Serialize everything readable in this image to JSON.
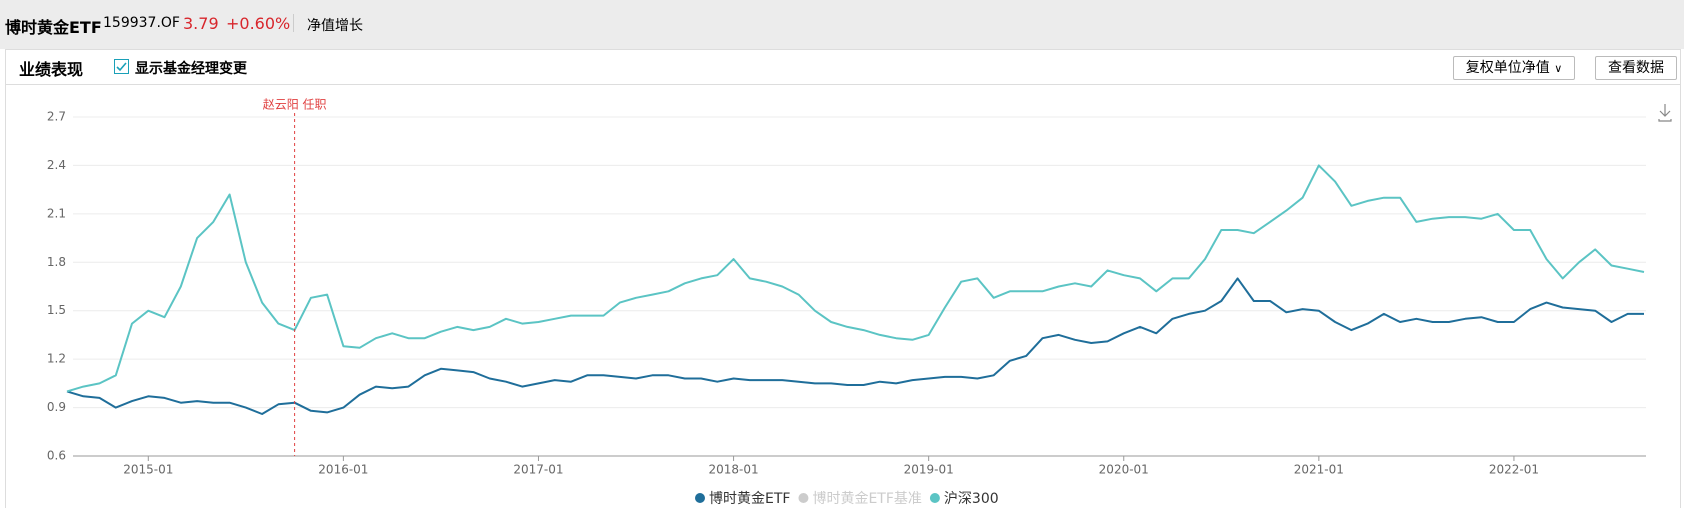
{
  "header": {
    "fund_name": "博时黄金ETF",
    "code": "159937.OF",
    "price": "3.79",
    "change": "+0.60%",
    "tab": "净值增长"
  },
  "panel": {
    "title": "业绩表现",
    "checkbox_label": "显示基金经理变更",
    "dropdown": "复权单位净值",
    "button": "查看数据"
  },
  "chart_data": {
    "type": "line",
    "x": [
      "2014-08",
      "2014-09",
      "2014-10",
      "2014-11",
      "2014-12",
      "2015-01",
      "2015-02",
      "2015-03",
      "2015-04",
      "2015-05",
      "2015-06",
      "2015-07",
      "2015-08",
      "2015-09",
      "2015-10",
      "2015-11",
      "2015-12",
      "2016-01",
      "2016-02",
      "2016-03",
      "2016-04",
      "2016-05",
      "2016-06",
      "2016-07",
      "2016-08",
      "2016-09",
      "2016-10",
      "2016-11",
      "2016-12",
      "2017-01",
      "2017-02",
      "2017-03",
      "2017-04",
      "2017-05",
      "2017-06",
      "2017-07",
      "2017-08",
      "2017-09",
      "2017-10",
      "2017-11",
      "2017-12",
      "2018-01",
      "2018-02",
      "2018-03",
      "2018-04",
      "2018-05",
      "2018-06",
      "2018-07",
      "2018-08",
      "2018-09",
      "2018-10",
      "2018-11",
      "2018-12",
      "2019-01",
      "2019-02",
      "2019-03",
      "2019-04",
      "2019-05",
      "2019-06",
      "2019-07",
      "2019-08",
      "2019-09",
      "2019-10",
      "2019-11",
      "2019-12",
      "2020-01",
      "2020-02",
      "2020-03",
      "2020-04",
      "2020-05",
      "2020-06",
      "2020-07",
      "2020-08",
      "2020-09",
      "2020-10",
      "2020-11",
      "2020-12",
      "2021-01",
      "2021-02",
      "2021-03",
      "2021-04",
      "2021-05",
      "2021-06",
      "2021-07",
      "2021-08",
      "2021-09",
      "2021-10",
      "2021-11",
      "2021-12",
      "2022-01",
      "2022-02",
      "2022-03",
      "2022-04",
      "2022-05",
      "2022-06",
      "2022-07",
      "2022-08",
      "2022-09"
    ],
    "series": [
      {
        "name": "博时黄金ETF",
        "color": "#1f6e9a",
        "values": [
          1.0,
          0.97,
          0.96,
          0.9,
          0.94,
          0.97,
          0.96,
          0.93,
          0.94,
          0.93,
          0.93,
          0.9,
          0.86,
          0.92,
          0.93,
          0.88,
          0.87,
          0.9,
          0.98,
          1.03,
          1.02,
          1.03,
          1.1,
          1.14,
          1.13,
          1.12,
          1.08,
          1.06,
          1.03,
          1.05,
          1.07,
          1.06,
          1.1,
          1.1,
          1.09,
          1.08,
          1.1,
          1.1,
          1.08,
          1.08,
          1.06,
          1.08,
          1.07,
          1.07,
          1.07,
          1.06,
          1.05,
          1.05,
          1.04,
          1.04,
          1.06,
          1.05,
          1.07,
          1.08,
          1.09,
          1.09,
          1.08,
          1.1,
          1.19,
          1.22,
          1.33,
          1.35,
          1.32,
          1.3,
          1.31,
          1.36,
          1.4,
          1.36,
          1.45,
          1.48,
          1.5,
          1.56,
          1.7,
          1.56,
          1.56,
          1.49,
          1.51,
          1.5,
          1.43,
          1.38,
          1.42,
          1.48,
          1.43,
          1.45,
          1.43,
          1.43,
          1.45,
          1.46,
          1.43,
          1.43,
          1.51,
          1.55,
          1.52,
          1.51,
          1.5,
          1.43,
          1.48,
          1.48
        ]
      },
      {
        "name": "沪深300",
        "color": "#5bc4c4",
        "values": [
          1.0,
          1.03,
          1.05,
          1.1,
          1.42,
          1.5,
          1.46,
          1.65,
          1.95,
          2.05,
          2.22,
          1.8,
          1.55,
          1.42,
          1.38,
          1.58,
          1.6,
          1.28,
          1.27,
          1.33,
          1.36,
          1.33,
          1.33,
          1.37,
          1.4,
          1.38,
          1.4,
          1.45,
          1.42,
          1.43,
          1.45,
          1.47,
          1.47,
          1.47,
          1.55,
          1.58,
          1.6,
          1.62,
          1.67,
          1.7,
          1.72,
          1.82,
          1.7,
          1.68,
          1.65,
          1.6,
          1.5,
          1.43,
          1.4,
          1.38,
          1.35,
          1.33,
          1.32,
          1.35,
          1.52,
          1.68,
          1.7,
          1.58,
          1.62,
          1.62,
          1.62,
          1.65,
          1.67,
          1.65,
          1.75,
          1.72,
          1.7,
          1.62,
          1.7,
          1.7,
          1.82,
          2.0,
          2.0,
          1.98,
          2.05,
          2.12,
          2.2,
          2.4,
          2.3,
          2.15,
          2.18,
          2.2,
          2.2,
          2.05,
          2.07,
          2.08,
          2.08,
          2.07,
          2.1,
          2.0,
          2.0,
          1.82,
          1.7,
          1.8,
          1.88,
          1.78,
          1.76,
          1.74
        ]
      }
    ],
    "legend_inactive": {
      "name": "博时黄金ETF基准",
      "color": "#cccccc"
    },
    "annotation": {
      "text": "赵云阳 任职",
      "x": "2015-10",
      "color": "#e04040"
    },
    "xlim": [
      "2014-08",
      "2022-09"
    ],
    "xticks": [
      "2015-01",
      "2016-01",
      "2017-01",
      "2018-01",
      "2019-01",
      "2020-01",
      "2021-01",
      "2022-01"
    ],
    "ylim": [
      0.6,
      2.7
    ],
    "yticks": [
      0.6,
      0.9,
      1.2,
      1.5,
      1.8,
      2.1,
      2.4,
      2.7
    ],
    "grid": true
  }
}
